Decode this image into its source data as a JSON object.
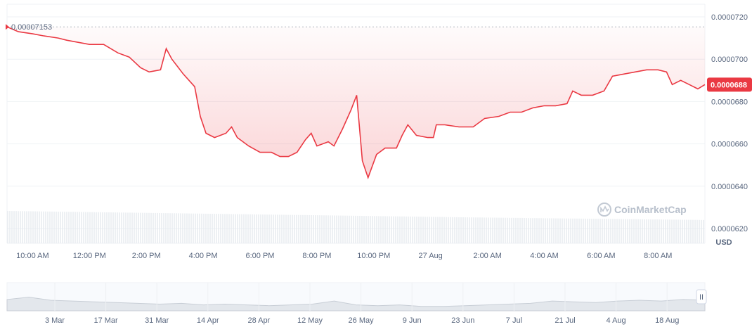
{
  "chart_data": {
    "type": "line",
    "ylim": [
      6.13e-05,
      7.26e-05
    ],
    "yticks": [
      {
        "value": 7.2e-05,
        "label": "0.0000720"
      },
      {
        "value": 7e-05,
        "label": "0.0000700"
      },
      {
        "value": 6.8e-05,
        "label": "0.0000680"
      },
      {
        "value": 6.6e-05,
        "label": "0.0000660"
      },
      {
        "value": 6.4e-05,
        "label": "0.0000640"
      },
      {
        "value": 6.2e-05,
        "label": "0.0000620"
      }
    ],
    "xtick_labels": [
      "10:00 AM",
      "12:00 PM",
      "2:00 PM",
      "4:00 PM",
      "6:00 PM",
      "8:00 PM",
      "10:00 PM",
      "27 Aug",
      "2:00 AM",
      "4:00 AM",
      "6:00 AM",
      "8:00 AM"
    ],
    "x_range": [
      9.1,
      33.65
    ],
    "xtick_hours": [
      10,
      12,
      14,
      16,
      18,
      20,
      22,
      24,
      26,
      28,
      30,
      32
    ],
    "unit_label": "USD",
    "start_value": 7.153e-05,
    "start_label": "0.00007153",
    "current_value": 6.88e-05,
    "current_label": "0.0000688",
    "series": [
      {
        "color": "#ea3943",
        "points": [
          [
            9.1,
            7.153e-05
          ],
          [
            9.5,
            7.13e-05
          ],
          [
            10.0,
            7.12e-05
          ],
          [
            10.4,
            7.11e-05
          ],
          [
            10.9,
            7.1e-05
          ],
          [
            11.2,
            7.09e-05
          ],
          [
            11.6,
            7.08e-05
          ],
          [
            12.0,
            7.07e-05
          ],
          [
            12.5,
            7.07e-05
          ],
          [
            13.0,
            7.03e-05
          ],
          [
            13.4,
            7.01e-05
          ],
          [
            13.8,
            6.96e-05
          ],
          [
            14.1,
            6.94e-05
          ],
          [
            14.5,
            6.95e-05
          ],
          [
            14.7,
            7.05e-05
          ],
          [
            14.9,
            7e-05
          ],
          [
            15.3,
            6.93e-05
          ],
          [
            15.7,
            6.87e-05
          ],
          [
            15.9,
            6.73e-05
          ],
          [
            16.1,
            6.65e-05
          ],
          [
            16.4,
            6.63e-05
          ],
          [
            16.8,
            6.65e-05
          ],
          [
            17.0,
            6.68e-05
          ],
          [
            17.2,
            6.63e-05
          ],
          [
            17.6,
            6.59e-05
          ],
          [
            18.0,
            6.56e-05
          ],
          [
            18.4,
            6.56e-05
          ],
          [
            18.7,
            6.54e-05
          ],
          [
            19.0,
            6.54e-05
          ],
          [
            19.3,
            6.56e-05
          ],
          [
            19.6,
            6.62e-05
          ],
          [
            19.8,
            6.65e-05
          ],
          [
            20.0,
            6.59e-05
          ],
          [
            20.4,
            6.61e-05
          ],
          [
            20.6,
            6.59e-05
          ],
          [
            20.9,
            6.67e-05
          ],
          [
            21.2,
            6.76e-05
          ],
          [
            21.4,
            6.83e-05
          ],
          [
            21.6,
            6.52e-05
          ],
          [
            21.8,
            6.44e-05
          ],
          [
            22.1,
            6.55e-05
          ],
          [
            22.4,
            6.58e-05
          ],
          [
            22.8,
            6.58e-05
          ],
          [
            23.0,
            6.64e-05
          ],
          [
            23.2,
            6.69e-05
          ],
          [
            23.5,
            6.64e-05
          ],
          [
            23.9,
            6.63e-05
          ],
          [
            24.1,
            6.63e-05
          ],
          [
            24.2,
            6.69e-05
          ],
          [
            24.5,
            6.69e-05
          ],
          [
            25.0,
            6.68e-05
          ],
          [
            25.5,
            6.68e-05
          ],
          [
            25.9,
            6.72e-05
          ],
          [
            26.4,
            6.73e-05
          ],
          [
            26.8,
            6.75e-05
          ],
          [
            27.2,
            6.75e-05
          ],
          [
            27.6,
            6.77e-05
          ],
          [
            28.0,
            6.78e-05
          ],
          [
            28.4,
            6.78e-05
          ],
          [
            28.8,
            6.79e-05
          ],
          [
            29.0,
            6.85e-05
          ],
          [
            29.3,
            6.83e-05
          ],
          [
            29.7,
            6.83e-05
          ],
          [
            30.1,
            6.85e-05
          ],
          [
            30.4,
            6.92e-05
          ],
          [
            30.8,
            6.93e-05
          ],
          [
            31.2,
            6.94e-05
          ],
          [
            31.6,
            6.95e-05
          ],
          [
            32.0,
            6.95e-05
          ],
          [
            32.3,
            6.94e-05
          ],
          [
            32.5,
            6.88e-05
          ],
          [
            32.8,
            6.9e-05
          ],
          [
            33.1,
            6.88e-05
          ],
          [
            33.4,
            6.86e-05
          ],
          [
            33.65,
            6.88e-05
          ]
        ]
      }
    ],
    "volume_levels": [
      1.0,
      0.9,
      0.8,
      0.72
    ],
    "navigator": {
      "xtick_labels": [
        "3 Mar",
        "17 Mar",
        "31 Mar",
        "14 Apr",
        "28 Apr",
        "12 May",
        "26 May",
        "9 Jun",
        "23 Jun",
        "7 Jul",
        "21 Jul",
        "4 Aug",
        "18 Aug"
      ],
      "levels": [
        0.55,
        0.7,
        0.5,
        0.45,
        0.4,
        0.35,
        0.3,
        0.25,
        0.3,
        0.2,
        0.25,
        0.2,
        0.15,
        0.2,
        0.25,
        0.45,
        0.2,
        0.15,
        0.2,
        0.1,
        0.1,
        0.15,
        0.2,
        0.25,
        0.3,
        0.45,
        0.4,
        0.35,
        0.45,
        0.5,
        0.45,
        0.55,
        0.5
      ]
    },
    "watermark": "CoinMarketCap",
    "handle_glyph": "II"
  }
}
